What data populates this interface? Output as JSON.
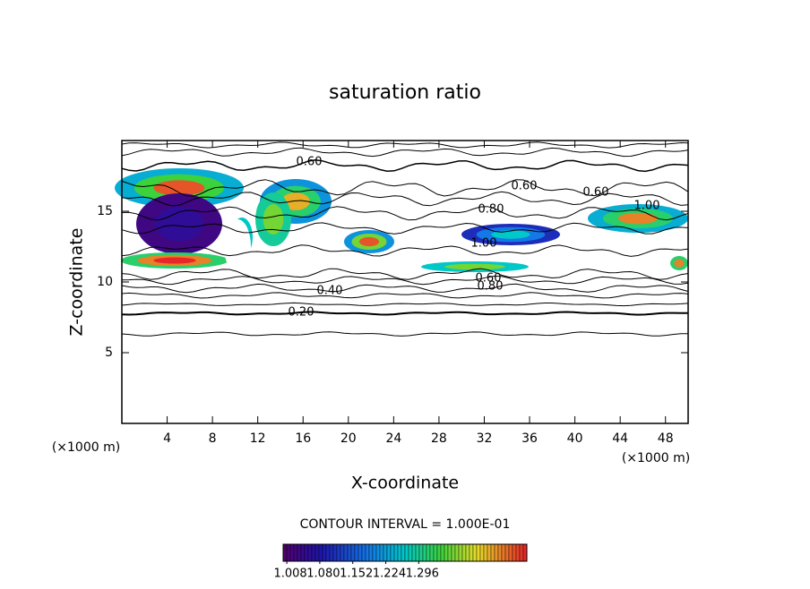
{
  "chart_data": {
    "type": "contour",
    "title": "saturation ratio",
    "xlabel": "X-coordinate",
    "ylabel": "Z-coordinate",
    "xunit": "(×1000 m)",
    "yunit": "(×1000 m)",
    "xlim": [
      0,
      50
    ],
    "ylim": [
      0,
      20
    ],
    "xticks": [
      4,
      8,
      12,
      16,
      20,
      24,
      28,
      32,
      36,
      40,
      44,
      48
    ],
    "yticks": [
      5,
      10,
      15
    ],
    "contour_interval": "CONTOUR INTERVAL = 1.000E-01",
    "contour_labels": [
      {
        "value": 0.6,
        "label": "0.60"
      },
      {
        "value": 0.6,
        "label": "0.60"
      },
      {
        "value": 0.6,
        "label": "0.60"
      },
      {
        "value": 1.0,
        "label": "1.00"
      },
      {
        "value": 0.8,
        "label": "0.80"
      },
      {
        "value": 0.4,
        "label": "0.40"
      },
      {
        "value": 0.2,
        "label": "0.20"
      },
      {
        "value": 0.8,
        "label": "0.80"
      },
      {
        "value": 0.6,
        "label": "0.60"
      },
      {
        "value": 1.0,
        "label": "1.00"
      }
    ],
    "clim": [
      1.0,
      1.532
    ],
    "cticks": [
      {
        "value": 1.008,
        "label": "1.008"
      },
      {
        "value": 1.08,
        "label": "1.080"
      },
      {
        "value": 1.152,
        "label": "1.152"
      },
      {
        "value": 1.224,
        "label": "1.224"
      },
      {
        "value": 1.296,
        "label": "1.296"
      }
    ]
  }
}
